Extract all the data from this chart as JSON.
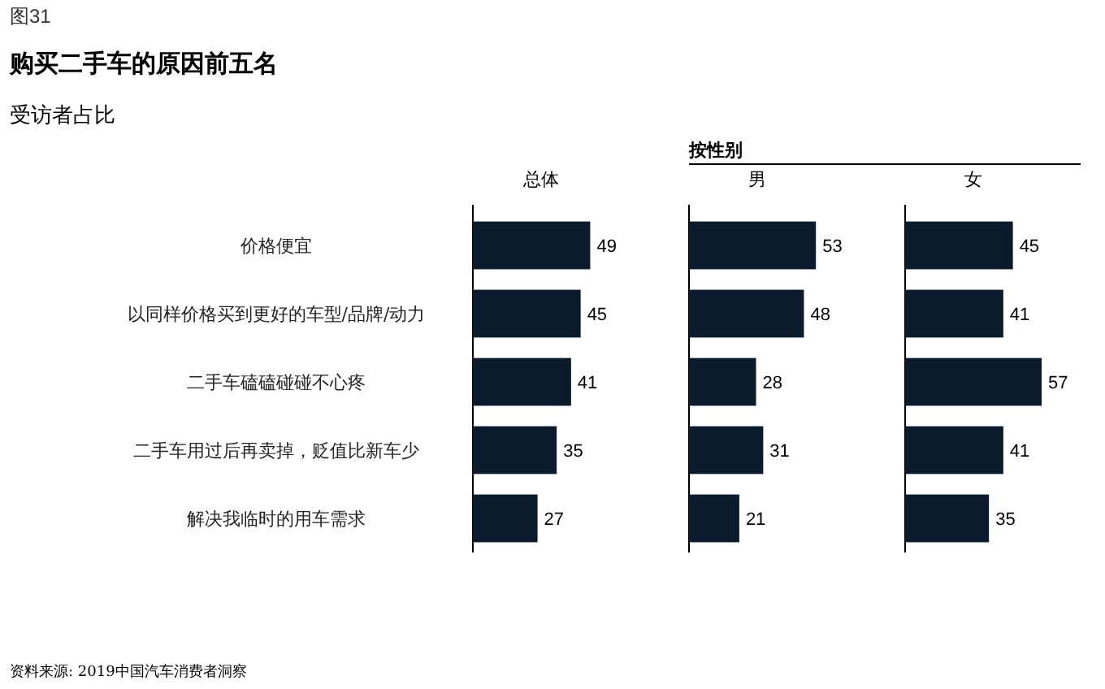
{
  "chart_data": [
    {
      "type": "bar",
      "orientation": "horizontal",
      "title": "购买二手车的原因前五名",
      "subtitle": "受访者占比",
      "annotations": [
        "图31",
        "资料来源: 2019中国汽车消费者洞察"
      ],
      "xlabel": "总体",
      "categories": [
        "价格便宜",
        "以同样价格买到更好的车型/品牌/动力",
        "二手车磕磕碰碰不心疼",
        "二手车用过后再卖掉，贬值比新车少",
        "解决我临时的用车需求"
      ],
      "color": "#0b1b2b",
      "data_labels": true,
      "tick_labels": "y",
      "values": [
        49,
        45,
        41,
        35,
        27
      ]
    },
    {
      "type": "bar",
      "orientation": "horizontal",
      "xlabel": "男",
      "annotations": [
        "按性别"
      ],
      "color": "#0b1b2b",
      "data_labels": true,
      "tick_labels": false,
      "values": [
        53,
        48,
        28,
        31,
        21
      ]
    },
    {
      "type": "bar",
      "orientation": "horizontal",
      "xlabel": "女",
      "color": "#0b1b2b",
      "data_labels": true,
      "tick_labels": false,
      "values": [
        45,
        41,
        57,
        41,
        35
      ]
    }
  ]
}
